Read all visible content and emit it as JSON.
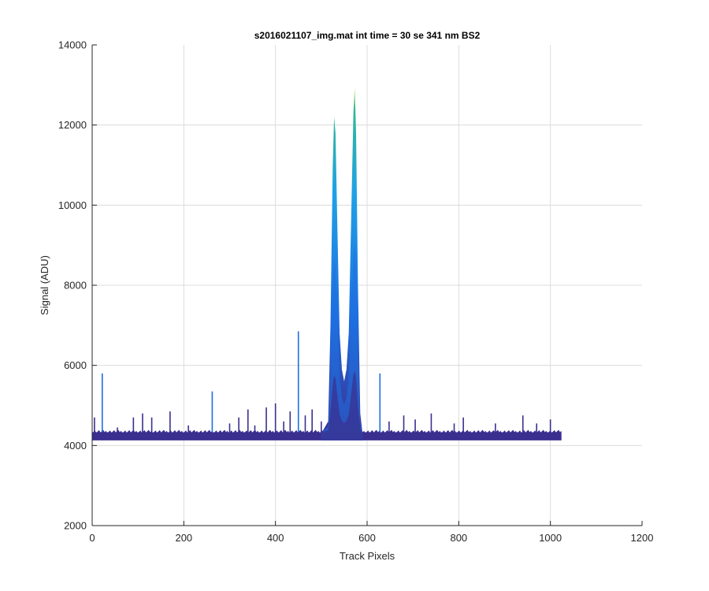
{
  "chart_data": {
    "type": "area",
    "title": "s2016021107_img.mat int time = 30 se  341 nm BS2",
    "xlabel": "Track Pixels",
    "ylabel": "Signal (ADU)",
    "xlim": [
      0,
      1200
    ],
    "ylim": [
      2000,
      14000
    ],
    "xticks": [
      "0",
      "200",
      "400",
      "600",
      "800",
      "1000",
      "1200"
    ],
    "yticks": [
      "2000",
      "4000",
      "6000",
      "8000",
      "10000",
      "12000",
      "14000"
    ],
    "grid": true,
    "baseline": {
      "x_start": 0,
      "x_end": 1024,
      "low": 4130,
      "high": 4330
    },
    "colors": {
      "base": "#3a2f8f",
      "mid": "#1f6fe0",
      "upper": "#1fa2e6",
      "peak": "#34b896",
      "tip": "#c8d94a"
    },
    "series": [
      {
        "x": [
          0,
          500,
          515,
          520,
          525,
          528,
          531,
          535,
          540,
          545,
          550,
          555,
          560,
          565,
          570,
          573,
          576,
          580,
          585,
          590,
          1024
        ],
        "values": [
          4300,
          4300,
          4600,
          7000,
          11000,
          12200,
          11800,
          9500,
          6800,
          5900,
          5600,
          5900,
          6800,
          9500,
          12300,
          12950,
          11800,
          8000,
          4800,
          4300,
          4300
        ]
      }
    ],
    "spikes": [
      {
        "x": 5,
        "y": 4700
      },
      {
        "x": 22,
        "y": 5800
      },
      {
        "x": 55,
        "y": 4450
      },
      {
        "x": 90,
        "y": 4700
      },
      {
        "x": 110,
        "y": 4800
      },
      {
        "x": 130,
        "y": 4700
      },
      {
        "x": 170,
        "y": 4850
      },
      {
        "x": 210,
        "y": 4500
      },
      {
        "x": 262,
        "y": 5350
      },
      {
        "x": 300,
        "y": 4550
      },
      {
        "x": 320,
        "y": 4700
      },
      {
        "x": 340,
        "y": 4900
      },
      {
        "x": 355,
        "y": 4500
      },
      {
        "x": 380,
        "y": 4950
      },
      {
        "x": 400,
        "y": 5050
      },
      {
        "x": 418,
        "y": 4600
      },
      {
        "x": 432,
        "y": 4850
      },
      {
        "x": 450,
        "y": 6850
      },
      {
        "x": 465,
        "y": 4750
      },
      {
        "x": 480,
        "y": 4900
      },
      {
        "x": 500,
        "y": 4600
      },
      {
        "x": 628,
        "y": 5800
      },
      {
        "x": 648,
        "y": 4600
      },
      {
        "x": 680,
        "y": 4750
      },
      {
        "x": 705,
        "y": 4650
      },
      {
        "x": 740,
        "y": 4800
      },
      {
        "x": 790,
        "y": 4550
      },
      {
        "x": 810,
        "y": 4700
      },
      {
        "x": 880,
        "y": 4550
      },
      {
        "x": 940,
        "y": 4750
      },
      {
        "x": 970,
        "y": 4550
      },
      {
        "x": 1000,
        "y": 4650
      }
    ]
  }
}
